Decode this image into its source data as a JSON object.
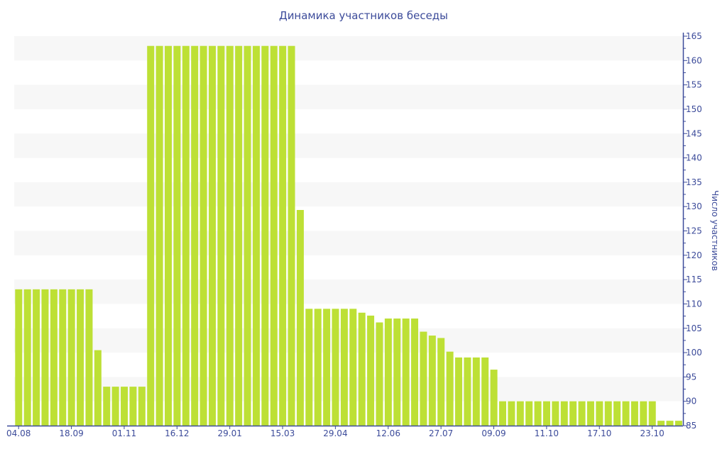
{
  "chart_data": {
    "type": "bar",
    "title": "Динамика участников беседы",
    "xlabel": "",
    "ylabel": "Число участников",
    "ylim": [
      85,
      165
    ],
    "y_ticks": [
      85,
      90,
      95,
      100,
      105,
      110,
      115,
      120,
      125,
      130,
      135,
      140,
      145,
      150,
      155,
      160,
      165
    ],
    "y_axis_side": "right",
    "grid": "alternating horizontal bands",
    "bar_color": "#bde035",
    "axis_color": "#3c4b9a",
    "x_tick_labels": [
      {
        "bar_index": 0,
        "label": "04.08"
      },
      {
        "bar_index": 6,
        "label": "18.09"
      },
      {
        "bar_index": 12,
        "label": "01.11"
      },
      {
        "bar_index": 18,
        "label": "16.12"
      },
      {
        "bar_index": 24,
        "label": "29.01"
      },
      {
        "bar_index": 30,
        "label": "15.03"
      },
      {
        "bar_index": 36,
        "label": "29.04"
      },
      {
        "bar_index": 42,
        "label": "12.06"
      },
      {
        "bar_index": 48,
        "label": "27.07"
      },
      {
        "bar_index": 54,
        "label": "09.09"
      },
      {
        "bar_index": 60,
        "label": "11.10"
      },
      {
        "bar_index": 66,
        "label": "17.10"
      },
      {
        "bar_index": 72,
        "label": "23.10"
      }
    ],
    "values": [
      113,
      113,
      113,
      113,
      113,
      113,
      113,
      113,
      113,
      100.5,
      93,
      93,
      93,
      93,
      93,
      163,
      163,
      163,
      163,
      163,
      163,
      163,
      163,
      163,
      163,
      163,
      163,
      163,
      163,
      163,
      163,
      163,
      129.3,
      109,
      109,
      109,
      109,
      109,
      109,
      108.2,
      107.6,
      106.2,
      107,
      107,
      107,
      107,
      104.3,
      103.5,
      103,
      100.2,
      99,
      99,
      99,
      99,
      96.5,
      90,
      90,
      90,
      90,
      90,
      90,
      90,
      90,
      90,
      90,
      90,
      90,
      90,
      90,
      90,
      90,
      90,
      90,
      86,
      86,
      86
    ]
  }
}
